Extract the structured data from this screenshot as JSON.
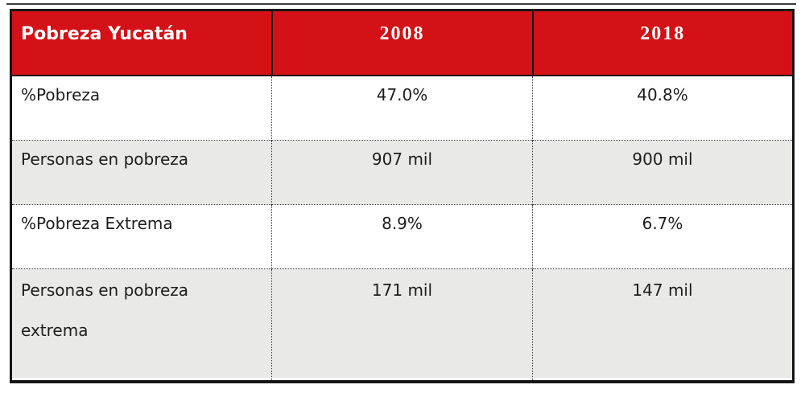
{
  "table": {
    "title": "Pobreza Yucatán",
    "columns": [
      "2008",
      "2018"
    ],
    "rows": [
      {
        "label": "%Pobreza",
        "y2008": "47.0%",
        "y2018": "40.8%"
      },
      {
        "label": "Personas en pobreza",
        "y2008": "907 mil",
        "y2018": "900 mil"
      },
      {
        "label": "%Pobreza Extrema",
        "y2008": "8.9%",
        "y2018": "6.7%"
      },
      {
        "label": "Personas en pobreza extrema",
        "y2008": "171 mil",
        "y2018": "147 mil"
      }
    ],
    "colors": {
      "header_bg": "#d31116",
      "header_text": "#ffffff",
      "alt_row_bg": "#e9e9e8",
      "border": "#161616",
      "body_text": "#1d1d1d"
    }
  },
  "chart_data": {
    "type": "table",
    "title": "Pobreza Yucatán",
    "columns": [
      "Pobreza Yucatán",
      "2008",
      "2018"
    ],
    "rows": [
      [
        "%Pobreza",
        "47.0%",
        "40.8%"
      ],
      [
        "Personas en pobreza",
        "907 mil",
        "900 mil"
      ],
      [
        "%Pobreza Extrema",
        "8.9%",
        "6.7%"
      ],
      [
        "Personas en pobreza extrema",
        "171 mil",
        "147 mil"
      ]
    ],
    "numeric": {
      "pobreza_pct": {
        "2008": 47.0,
        "2018": 40.8
      },
      "personas_pobreza_miles": {
        "2008": 907,
        "2018": 900
      },
      "pobreza_extrema_pct": {
        "2008": 8.9,
        "2018": 6.7
      },
      "personas_pobreza_extrema_miles": {
        "2008": 171,
        "2018": 147
      }
    },
    "layout": {
      "header_style": "red background, white bold text",
      "alternating_rows": true,
      "grid": "dotted inner borders, solid black outer border"
    }
  }
}
